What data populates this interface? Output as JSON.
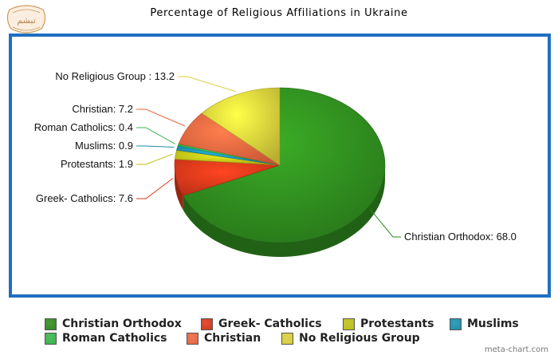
{
  "chart_data": {
    "type": "pie",
    "title": "Percentage of Religious Affiliations in Ukraine",
    "series": [
      {
        "name": "Christian Orthodox",
        "value": 68.0,
        "label": "Christian Orthodox: 68.0",
        "color": "#2f8a1e"
      },
      {
        "name": "Greek- Catholics",
        "value": 7.6,
        "label": "Greek- Catholics: 7.6",
        "color": "#d7371a"
      },
      {
        "name": "Protestants",
        "value": 1.9,
        "label": "Protestants: 1.9",
        "color": "#bcbf16"
      },
      {
        "name": "Muslims",
        "value": 0.9,
        "label": "Muslims: 0.9",
        "color": "#1b8fae"
      },
      {
        "name": "Roman Catholics",
        "value": 0.4,
        "label": "Roman Catholics: 0.4",
        "color": "#37b34a"
      },
      {
        "name": "Christian",
        "value": 7.2,
        "label": "Christian: 7.2",
        "color": "#e8653e"
      },
      {
        "name": "No Religious Group",
        "value": 13.2,
        "label": "No Religious Group : 13.2",
        "color": "#d8cd3a"
      }
    ],
    "legend_position": "bottom"
  },
  "legend": {
    "items": [
      {
        "label": "Christian Orthodox",
        "color": "#2f8a1e"
      },
      {
        "label": "Greek- Catholics",
        "color": "#d7371a"
      },
      {
        "label": "Protestants",
        "color": "#bcbf16"
      },
      {
        "label": "Muslims",
        "color": "#1b8fae"
      },
      {
        "label": "Roman Catholics",
        "color": "#37b34a"
      },
      {
        "label": "Christian",
        "color": "#e8653e"
      },
      {
        "label": "No Religious Group",
        "color": "#d8cd3a"
      }
    ]
  },
  "credit": "meta-chart.com",
  "logo": {
    "text": "تبشم"
  }
}
